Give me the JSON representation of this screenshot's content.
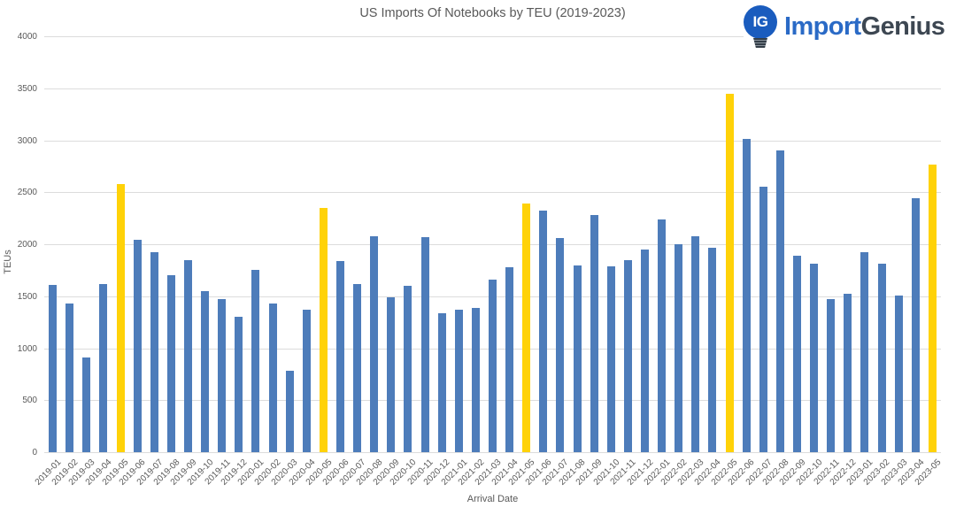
{
  "logo": {
    "monogram": "IG",
    "text_primary": "Import",
    "text_secondary": "Genius",
    "bulb_color": "#1a5cbe",
    "primary_color": "#2a6ac6",
    "secondary_color": "#3d4752"
  },
  "colors": {
    "title_text": "#595959",
    "axis_text": "#595959",
    "gridline": "#dcdcdc"
  },
  "chart_data": {
    "type": "bar",
    "title": "US Imports Of Notebooks by TEU (2019-2023)",
    "xlabel": "Arrival Date",
    "ylabel": "TEUs",
    "ylim": [
      0,
      4000
    ],
    "yticks": [
      0,
      500,
      1000,
      1500,
      2000,
      2500,
      3000,
      3500,
      4000
    ],
    "grid": true,
    "legend": "none",
    "bar_color": "#4d7cba",
    "highlight_color": "#ffd208",
    "highlight_indices": [
      4,
      16,
      28,
      40,
      52
    ],
    "categories": [
      "2019-01",
      "2019-02",
      "2019-03",
      "2019-04",
      "2019-05",
      "2019-06",
      "2019-07",
      "2019-08",
      "2019-09",
      "2019-10",
      "2019-11",
      "2019-12",
      "2020-01",
      "2020-02",
      "2020-03",
      "2020-04",
      "2020-05",
      "2020-06",
      "2020-07",
      "2020-08",
      "2020-09",
      "2020-10",
      "2020-11",
      "2020-12",
      "2021-01",
      "2021-02",
      "2021-03",
      "2021-04",
      "2021-05",
      "2021-06",
      "2021-07",
      "2021-08",
      "2021-09",
      "2021-10",
      "2021-11",
      "2021-12",
      "2022-01",
      "2022-02",
      "2022-03",
      "2022-04",
      "2022-05",
      "2022-06",
      "2022-07",
      "2022-08",
      "2022-09",
      "2022-10",
      "2022-11",
      "2022-12",
      "2023-01",
      "2023-02",
      "2023-03",
      "2023-04",
      "2023-05"
    ],
    "values": [
      1610,
      1430,
      910,
      1620,
      2580,
      2040,
      1920,
      1700,
      1850,
      1550,
      1470,
      1300,
      1750,
      1430,
      780,
      1370,
      2350,
      1840,
      1620,
      2080,
      1490,
      1600,
      2070,
      1340,
      1370,
      1390,
      1660,
      1780,
      2390,
      2320,
      2060,
      1800,
      2280,
      1790,
      1850,
      1950,
      2240,
      2000,
      2080,
      1970,
      3450,
      3010,
      2550,
      2900,
      1890,
      1810,
      1470,
      1520,
      1920,
      1810,
      1510,
      2440,
      2770
    ]
  }
}
